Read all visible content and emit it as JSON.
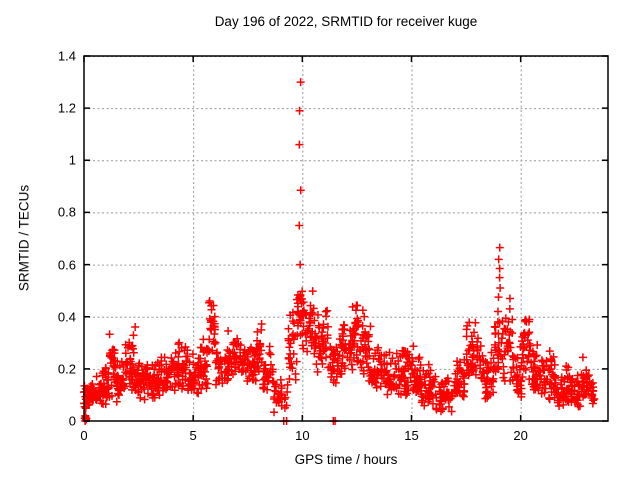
{
  "chart_data": {
    "type": "scatter",
    "title": "Day 196 of 2022, SRMTID for receiver kuge",
    "xlabel": "GPS time / hours",
    "ylabel": "SRMTID / TECUs",
    "xlim": [
      0,
      24
    ],
    "ylim": [
      0,
      1.4
    ],
    "xticks": {
      "values": [
        0,
        5,
        10,
        15,
        20
      ],
      "labels": [
        "0",
        "5",
        "10",
        "15",
        "20"
      ]
    },
    "yticks": {
      "values": [
        0,
        0.2,
        0.4,
        0.6,
        0.8,
        1.0,
        1.2,
        1.4
      ],
      "labels": [
        "0",
        "0.2",
        "0.4",
        "0.6",
        "0.8",
        "1",
        "1.2",
        "1.4"
      ]
    },
    "grid": true,
    "legend": "none",
    "marker": "plus",
    "marker_color": "#ff0000",
    "grid_color": "#999999",
    "border_color": "#000000",
    "background_color": "#ffffff",
    "segment_format": [
      "x_start_hours",
      "x_end_hours",
      "y_min_TECUs",
      "y_max_TECUs",
      "point_count"
    ],
    "band_segments": [
      [
        0.0,
        0.3,
        0.04,
        0.16,
        25
      ],
      [
        0.3,
        0.7,
        0.05,
        0.18,
        30
      ],
      [
        0.7,
        1.1,
        0.06,
        0.22,
        35
      ],
      [
        1.1,
        1.45,
        0.08,
        0.35,
        30
      ],
      [
        1.45,
        1.9,
        0.07,
        0.25,
        35
      ],
      [
        1.9,
        2.35,
        0.08,
        0.37,
        35
      ],
      [
        2.35,
        2.9,
        0.08,
        0.26,
        40
      ],
      [
        2.9,
        3.5,
        0.08,
        0.24,
        45
      ],
      [
        3.5,
        4.2,
        0.09,
        0.28,
        45
      ],
      [
        4.2,
        4.75,
        0.1,
        0.31,
        40
      ],
      [
        4.75,
        5.3,
        0.09,
        0.28,
        40
      ],
      [
        5.3,
        5.7,
        0.12,
        0.33,
        30
      ],
      [
        5.7,
        6.0,
        0.25,
        0.53,
        25
      ],
      [
        6.0,
        6.6,
        0.13,
        0.33,
        35
      ],
      [
        6.6,
        7.0,
        0.15,
        0.38,
        30
      ],
      [
        7.0,
        7.9,
        0.14,
        0.35,
        55
      ],
      [
        7.9,
        8.15,
        0.18,
        0.4,
        20
      ],
      [
        8.15,
        8.7,
        0.1,
        0.3,
        35
      ],
      [
        8.7,
        9.35,
        0.03,
        0.16,
        30
      ],
      [
        9.35,
        9.75,
        0.15,
        0.45,
        25
      ],
      [
        9.75,
        10.0,
        0.28,
        0.55,
        25
      ],
      [
        10.0,
        10.55,
        0.25,
        0.52,
        35
      ],
      [
        10.55,
        11.25,
        0.18,
        0.5,
        40
      ],
      [
        11.25,
        11.8,
        0.13,
        0.33,
        35
      ],
      [
        11.8,
        12.3,
        0.18,
        0.43,
        35
      ],
      [
        12.3,
        12.65,
        0.22,
        0.48,
        30
      ],
      [
        12.65,
        13.15,
        0.15,
        0.43,
        35
      ],
      [
        13.15,
        13.7,
        0.08,
        0.3,
        35
      ],
      [
        13.7,
        14.35,
        0.07,
        0.3,
        40
      ],
      [
        14.35,
        14.9,
        0.09,
        0.33,
        40
      ],
      [
        14.9,
        15.45,
        0.09,
        0.3,
        40
      ],
      [
        15.45,
        16.1,
        0.05,
        0.23,
        40
      ],
      [
        16.1,
        16.95,
        0.03,
        0.18,
        45
      ],
      [
        16.95,
        17.45,
        0.07,
        0.25,
        35
      ],
      [
        17.45,
        18.25,
        0.12,
        0.4,
        50
      ],
      [
        18.25,
        18.75,
        0.08,
        0.3,
        35
      ],
      [
        18.75,
        19.15,
        0.15,
        0.4,
        25
      ],
      [
        19.15,
        19.65,
        0.12,
        0.45,
        30
      ],
      [
        19.65,
        20.05,
        0.08,
        0.3,
        30
      ],
      [
        20.05,
        20.45,
        0.15,
        0.47,
        30
      ],
      [
        20.45,
        21.05,
        0.08,
        0.3,
        40
      ],
      [
        21.05,
        21.55,
        0.08,
        0.3,
        35
      ],
      [
        21.55,
        22.3,
        0.05,
        0.22,
        45
      ],
      [
        22.3,
        22.75,
        0.05,
        0.2,
        30
      ],
      [
        22.75,
        23.15,
        0.08,
        0.25,
        25
      ],
      [
        23.15,
        23.45,
        0.06,
        0.16,
        15
      ]
    ],
    "spike_columns": [
      {
        "x": 9.87,
        "y_values": [
          0.6,
          0.75,
          0.885,
          1.06,
          1.19,
          1.3
        ]
      },
      {
        "x": 19.0,
        "y_values": [
          0.3,
          0.335,
          0.38,
          0.42,
          0.475,
          0.51,
          0.55,
          0.585,
          0.62,
          0.665
        ]
      },
      {
        "x": 19.45,
        "y_values": [
          0.33,
          0.38,
          0.43,
          0.47
        ]
      }
    ],
    "zero_points": [
      [
        0.03,
        0.01
      ],
      [
        0.05,
        0.0
      ],
      [
        0.07,
        0.015
      ],
      [
        0.09,
        0.005
      ],
      [
        0.11,
        0.01
      ],
      [
        0.06,
        0.02
      ],
      [
        9.15,
        0.0
      ],
      [
        9.28,
        0.0
      ],
      [
        11.42,
        0.0
      ],
      [
        11.5,
        0.0
      ]
    ]
  }
}
